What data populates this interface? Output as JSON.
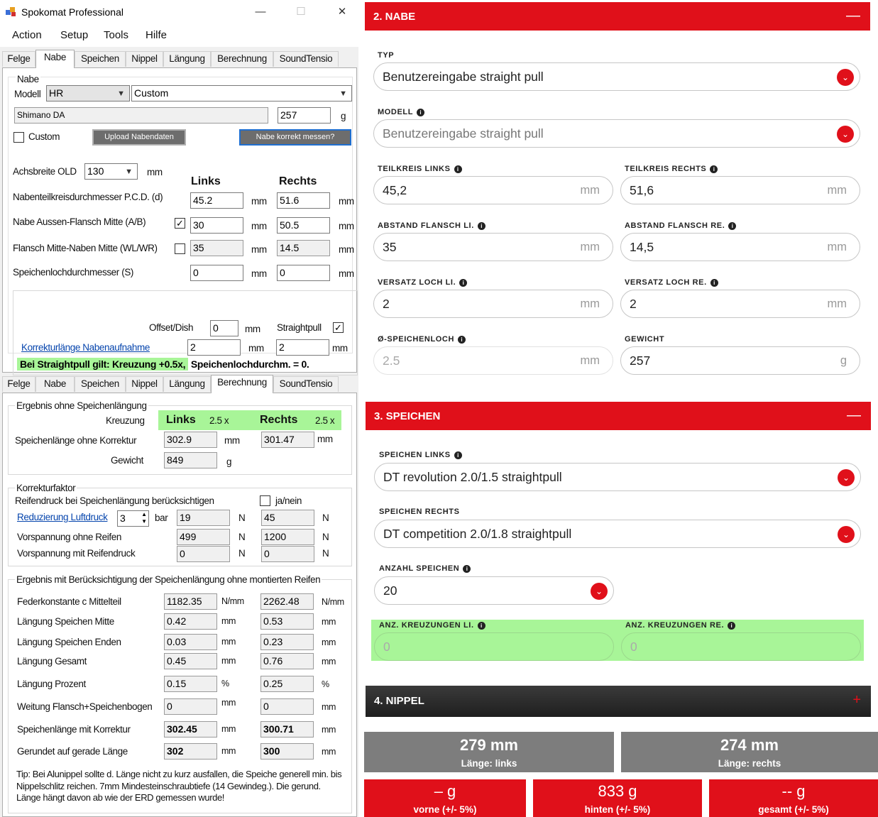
{
  "window": {
    "title": "Spokomat Professional",
    "minimize": "—",
    "maximize": "☐",
    "close": "✕"
  },
  "menu": [
    "Action",
    "Setup",
    "Tools",
    "Hilfe"
  ],
  "tabs": [
    "Felge",
    "Nabe",
    "Speichen",
    "Nippel",
    "Längung",
    "Berechnung",
    "SoundTensio"
  ],
  "nabe": {
    "group": "Nabe",
    "modell_label": "Modell",
    "modell_value": "HR",
    "custom_select": "Custom",
    "name_value": "Shimano DA",
    "weight_value": "257",
    "weight_unit": "g",
    "custom_label": "Custom",
    "upload_button": "Upload Nabendaten",
    "measure_button": "Nabe korrekt messen?",
    "achsbreite_label": "Achsbreite OLD",
    "achsbreite_value": "130",
    "mm": "mm",
    "links": "Links",
    "rechts": "Rechts",
    "pcd_label": "Nabenteilkreisdurchmesser P.C.D. (d)",
    "pcd_links": "45.2",
    "pcd_rechts": "51.6",
    "aussen_label": "Nabe Aussen-Flansch Mitte (A/B)",
    "aussen_check": "✓",
    "aussen_links": "30",
    "aussen_rechts": "50.5",
    "flansch_label": "Flansch Mitte-Naben Mitte (WL/WR)",
    "flansch_links": "35",
    "flansch_rechts": "14.5",
    "loch_label": "Speichenlochdurchmesser (S)",
    "loch_links": "0",
    "loch_rechts": "0",
    "offset_label": "Offset/Dish",
    "offset_value": "0",
    "straightpull_label": "Straightpull",
    "straightpull_check": "✓",
    "korrektur_link": "Korrekturlänge Nabenaufnahme",
    "korrektur_links": "2",
    "korrektur_rechts": "2",
    "hint_green": "Bei Straightpull gilt: Kreuzung +0.5x,",
    "hint_rest": " Speichenlochdurchm. = 0."
  },
  "berechnung": {
    "group1": "Ergebnis ohne Speichenlängung",
    "kreuzung_label": "Kreuzung",
    "links": "Links",
    "links_x": "2.5 x",
    "rechts": "Rechts",
    "rechts_x": "2.5 x",
    "laenge_label": "Speichenlänge ohne Korrektur",
    "laenge_links": "302.9",
    "laenge_rechts": "301.47",
    "gewicht_label": "Gewicht",
    "gewicht_value": "849",
    "g": "g",
    "mm": "mm",
    "group2": "Korrekturfaktor",
    "reifen_label": "Reifendruck bei Speichenlängung berücksichtigen",
    "janein": "ja/nein",
    "reduz_link": "Reduzierung Luftdruck",
    "bar_value": "3",
    "bar": "bar",
    "reduz_links": "19",
    "reduz_rechts": "45",
    "N": "N",
    "vorsp_ohne_label": "Vorspannung ohne Reifen",
    "vorsp_ohne_links": "499",
    "vorsp_ohne_rechts": "1200",
    "vorsp_mit_label": "Vorspannung mit Reifendruck",
    "vorsp_mit_links": "0",
    "vorsp_mit_rechts": "0",
    "group3": "Ergebnis mit Berücksichtigung der Speichenlängung ohne montierten Reifen",
    "rows": [
      {
        "label": "Federkonstante c Mittelteil",
        "l": "1182.35",
        "lu": "N/mm",
        "r": "2262.48",
        "ru": "N/mm"
      },
      {
        "label": "Längung Speichen Mitte",
        "l": "0.42",
        "lu": "mm",
        "r": "0.53",
        "ru": "mm"
      },
      {
        "label": "Längung Speichen Enden",
        "l": "0.03",
        "lu": "mm",
        "r": "0.23",
        "ru": "mm"
      },
      {
        "label": "Längung Gesamt",
        "l": "0.45",
        "lu": "mm",
        "r": "0.76",
        "ru": "mm"
      },
      {
        "label": "Längung Prozent",
        "l": "0.15",
        "lu": "%",
        "r": "0.25",
        "ru": "%"
      },
      {
        "label": "Weitung Flansch+Speichenbogen",
        "l": "0",
        "lu": "mm",
        "r": "0",
        "ru": "mm"
      },
      {
        "label": "Speichenlänge mit Korrektur",
        "l": "302.45",
        "lu": "mm",
        "r": "300.71",
        "ru": "mm"
      },
      {
        "label": "Gerundet auf gerade Länge",
        "l": "302",
        "lu": "mm",
        "r": "300",
        "ru": "mm"
      }
    ],
    "tip": "Tip: Bei Alunippel sollte d. Länge nicht zu kurz ausfallen, die Speiche generell min. bis Nippelschlitz reichen. 7mm Mindesteinschraubtiefe (14 Gewindeg.). Die gerund. Länge hängt davon ab wie der ERD gemessen wurde!"
  },
  "web": {
    "nabe": {
      "header": "2. NABE",
      "toggle": "—",
      "typ_label": "TYP",
      "typ_value": "Benutzereingabe straight pull",
      "modell_label": "MODELL",
      "modell_value": "Benutzereingabe straight pull",
      "tk_links_label": "TEILKREIS LINKS",
      "tk_links": "45,2",
      "tk_rechts_label": "TEILKREIS RECHTS",
      "tk_rechts": "51,6",
      "af_links_label": "ABSTAND FLANSCH LI.",
      "af_links": "35",
      "af_rechts_label": "ABSTAND FLANSCH RE.",
      "af_rechts": "14,5",
      "vl_links_label": "VERSATZ LOCH LI.",
      "vl_links": "2",
      "vl_rechts_label": "VERSATZ LOCH RE.",
      "vl_rechts": "2",
      "sl_label": "Ø-SPEICHENLOCH",
      "sl_value": "2.5",
      "gewicht_label": "GEWICHT",
      "gewicht_value": "257",
      "mm": "mm",
      "g": "g"
    },
    "speichen": {
      "header": "3. SPEICHEN",
      "toggle": "—",
      "links_label": "SPEICHEN LINKS",
      "links_value": "DT revolution 2.0/1.5 straightpull",
      "rechts_label": "SPEICHEN RECHTS",
      "rechts_value": "DT competition 2.0/1.8 straightpull",
      "anzahl_label": "ANZAHL SPEICHEN",
      "anzahl_value": "20",
      "kr_links_label": "ANZ. KREUZUNGEN LI.",
      "kr_links": "0",
      "kr_rechts_label": "ANZ. KREUZUNGEN RE.",
      "kr_rechts": "0"
    },
    "nippel": {
      "header": "4. NIPPEL",
      "toggle": "+"
    },
    "summary": {
      "len_links": "279 mm",
      "len_links_label": "Länge: links",
      "len_rechts": "274 mm",
      "len_rechts_label": "Länge: rechts",
      "w_vorne": "– g",
      "w_vorne_label": "vorne (+/- 5%)",
      "w_hinten": "833 g",
      "w_hinten_label": "hinten (+/- 5%)",
      "w_gesamt": "-- g",
      "w_gesamt_label": "gesamt (+/- 5%)"
    },
    "colors": {
      "red": "#e0101a",
      "dark": "#2b2b2b",
      "gray": "#7a7a7a",
      "green": "#a8f598"
    }
  }
}
